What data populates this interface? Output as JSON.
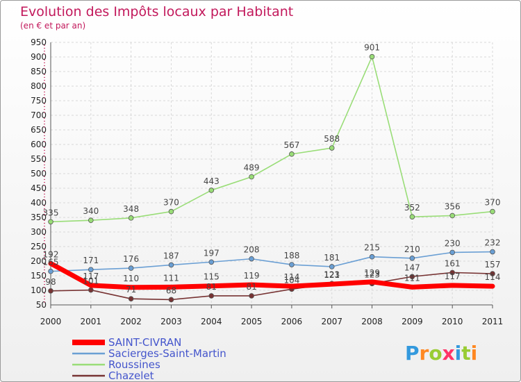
{
  "chart_data": {
    "type": "line",
    "title": "Evolution des Impôts locaux par Habitant",
    "subtitle": "(en € et par an)",
    "x": [
      "2000",
      "2001",
      "2002",
      "2003",
      "2004",
      "2005",
      "2006",
      "2007",
      "2008",
      "2009",
      "2010",
      "2011"
    ],
    "ylim": [
      50,
      950
    ],
    "yticks": [
      50,
      100,
      150,
      200,
      250,
      300,
      350,
      400,
      450,
      500,
      550,
      600,
      650,
      700,
      750,
      800,
      850,
      900,
      950
    ],
    "grid": true,
    "legend_position": "bottom-left",
    "series": [
      {
        "name": "SAINT-CIVRAN",
        "color": "#ff0000",
        "values": [
          192,
          117,
          110,
          111,
          115,
          119,
          114,
          121,
          129,
          111,
          117,
          114
        ],
        "labels": [
          "192",
          "117",
          "110",
          "111",
          "115",
          "119",
          "114",
          "121",
          "129",
          "111",
          "117",
          "114"
        ]
      },
      {
        "name": "Sacierges-Saint-Martin",
        "color": "#6a9fd4",
        "values": [
          165,
          171,
          176,
          187,
          197,
          208,
          188,
          181,
          215,
          210,
          230,
          232
        ],
        "labels": [
          "165",
          "171",
          "176",
          "187",
          "197",
          "208",
          "188",
          "181",
          "215",
          "210",
          "230",
          "232"
        ]
      },
      {
        "name": "Roussines",
        "color": "#99dd77",
        "values": [
          335,
          340,
          348,
          370,
          443,
          489,
          567,
          588,
          901,
          352,
          356,
          370
        ],
        "labels": [
          "335",
          "340",
          "348",
          "370",
          "443",
          "489",
          "567",
          "588",
          "901",
          "352",
          "356",
          "370"
        ]
      },
      {
        "name": "Chazelet",
        "color": "#773333",
        "values": [
          98,
          101,
          71,
          68,
          81,
          81,
          104,
          123,
          123,
          147,
          161,
          157
        ],
        "labels": [
          "98",
          "101",
          "71",
          "68",
          "81",
          "81",
          "104",
          "123",
          "123",
          "147",
          "161",
          "157"
        ]
      }
    ]
  },
  "logo": {
    "text": "Proxiti",
    "colors": [
      "#3399dd",
      "#ff8822",
      "#99cc33",
      "#ff3366",
      "#3399dd",
      "#99cc33",
      "#ff8822"
    ]
  }
}
